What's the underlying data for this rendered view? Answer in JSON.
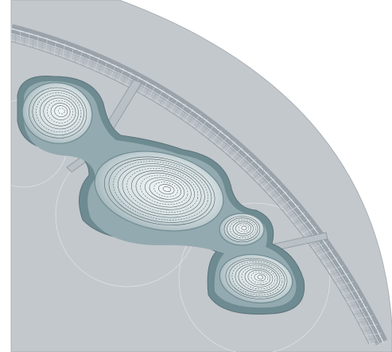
{
  "drawing": {
    "colors": {
      "paper": "#ffffff",
      "ground": "#c3c8cd",
      "ground_edge": "#a9b0b6",
      "rim_outer": "#9aa3aa",
      "rim_inner": "#b7bdc2",
      "rim_hatch": "#e9edf0",
      "pool_outer": "#6f8b92",
      "pool_mid": "#93aab0",
      "pool_inner": "#c5d3d6",
      "pool_light": "#eef2f3",
      "contour": "#4c5c62",
      "faint_circle": "#dde2e6"
    },
    "pools": [
      {
        "label": "pool-upper-left",
        "contours": 9
      },
      {
        "label": "pool-large",
        "contours": 14
      },
      {
        "label": "pool-small",
        "contours": 7
      },
      {
        "label": "pool-lower-right",
        "contours": 11
      }
    ],
    "bridges": 3
  }
}
